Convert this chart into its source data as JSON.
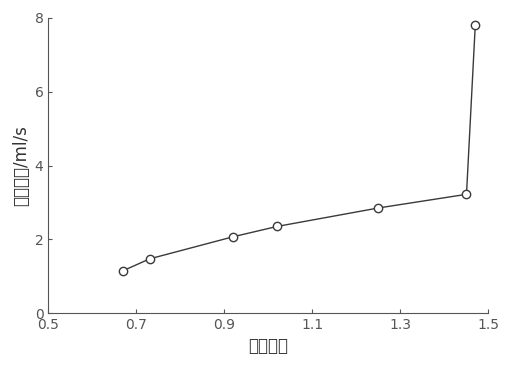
{
  "x": [
    0.67,
    0.73,
    0.92,
    1.02,
    1.25,
    1.45,
    1.47
  ],
  "y": [
    1.15,
    1.47,
    2.07,
    2.35,
    2.85,
    3.22,
    7.82
  ],
  "xlabel": "水力梯度",
  "ylabel": "渗透流量/ml/s",
  "xlim": [
    0.5,
    1.5
  ],
  "ylim": [
    0,
    8
  ],
  "xticks": [
    0.5,
    0.7,
    0.9,
    1.1,
    1.3,
    1.5
  ],
  "yticks": [
    0,
    2,
    4,
    6,
    8
  ],
  "line_color": "#3a3a3a",
  "marker_color": "#3a3a3a",
  "marker_face": "white",
  "marker_size": 6,
  "line_width": 1.0,
  "bg_color": "#ffffff",
  "xlabel_fontsize": 12,
  "ylabel_fontsize": 12,
  "tick_fontsize": 10
}
